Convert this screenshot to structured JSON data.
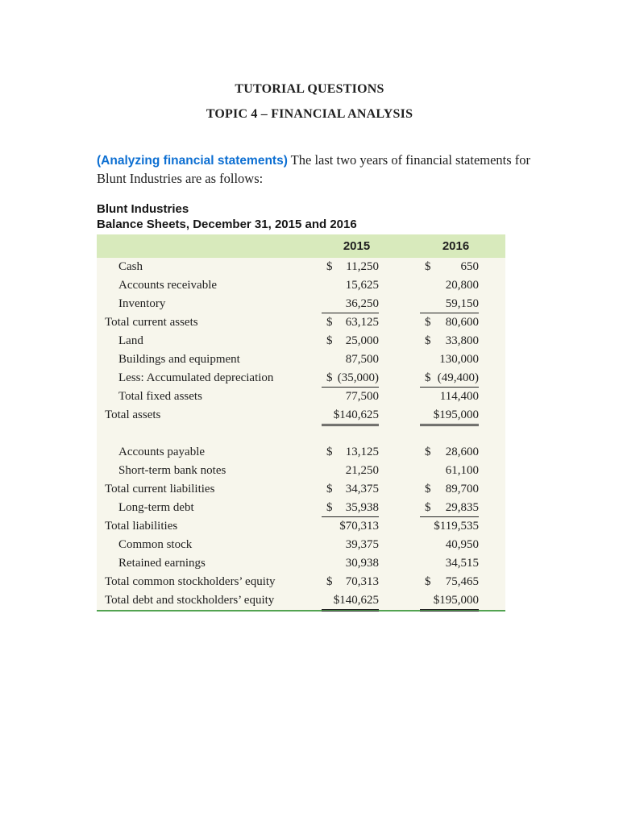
{
  "colors": {
    "highlight_blue": "#0d6fd2",
    "table_header_bg": "#d8eabc",
    "table_body_bg": "#f7f6ec",
    "table_bottom_rule": "#52a351",
    "text": "#1f1f1f"
  },
  "document": {
    "heading_line1": "TUTORIAL QUESTIONS",
    "heading_line2": "TOPIC 4 – FINANCIAL ANALYSIS",
    "intro": {
      "highlight": "(Analyzing financial statements)",
      "text": " The last two years of financial statements for Blunt Industries are as follows:"
    }
  },
  "balance_sheet": {
    "company": "Blunt Industries",
    "subtitle": "Balance Sheets, December 31, 2015 and 2016",
    "columns": [
      "2015",
      "2016"
    ],
    "rows": [
      {
        "label": "Cash",
        "indent": true,
        "underline": "none",
        "amounts": [
          {
            "dollar": "$",
            "value": "11,250"
          },
          {
            "dollar": "$",
            "value": "650"
          }
        ]
      },
      {
        "label": "Accounts receivable",
        "indent": true,
        "underline": "none",
        "amounts": [
          {
            "dollar": "",
            "value": "15,625"
          },
          {
            "dollar": "",
            "value": "20,800"
          }
        ]
      },
      {
        "label": "Inventory",
        "indent": true,
        "underline": "single",
        "amounts": [
          {
            "dollar": "",
            "value": "36,250"
          },
          {
            "dollar": "",
            "value": "59,150"
          }
        ]
      },
      {
        "label": "Total current assets",
        "indent": false,
        "underline": "none",
        "amounts": [
          {
            "dollar": "$",
            "value": "63,125"
          },
          {
            "dollar": "$",
            "value": "80,600"
          }
        ]
      },
      {
        "label": "Land",
        "indent": true,
        "underline": "none",
        "amounts": [
          {
            "dollar": "$",
            "value": "25,000"
          },
          {
            "dollar": "$",
            "value": "33,800"
          }
        ]
      },
      {
        "label": "Buildings and equipment",
        "indent": true,
        "underline": "none",
        "amounts": [
          {
            "dollar": "",
            "value": "87,500"
          },
          {
            "dollar": "",
            "value": "130,000"
          }
        ]
      },
      {
        "label": "Less: Accumulated depreciation",
        "indent": true,
        "underline": "single",
        "amounts": [
          {
            "dollar": "$",
            "value": "(35,000)"
          },
          {
            "dollar": "$",
            "value": "(49,400)"
          }
        ]
      },
      {
        "label": "Total fixed assets",
        "indent": true,
        "underline": "none",
        "amounts": [
          {
            "dollar": "",
            "value": "77,500"
          },
          {
            "dollar": "",
            "value": "114,400"
          }
        ]
      },
      {
        "label": "Total assets",
        "indent": false,
        "underline": "double",
        "amounts": [
          {
            "dollar": "$",
            "value": "140,625",
            "tight": true
          },
          {
            "dollar": "$",
            "value": "195,000",
            "tight": true
          }
        ]
      },
      {
        "spacer": true
      },
      {
        "label": "Accounts payable",
        "indent": true,
        "underline": "none",
        "amounts": [
          {
            "dollar": "$",
            "value": "13,125"
          },
          {
            "dollar": "$",
            "value": "28,600"
          }
        ]
      },
      {
        "label": "Short-term bank notes",
        "indent": true,
        "underline": "none",
        "amounts": [
          {
            "dollar": "",
            "value": "21,250"
          },
          {
            "dollar": "",
            "value": "61,100"
          }
        ]
      },
      {
        "label": "Total current liabilities",
        "indent": false,
        "underline": "none",
        "amounts": [
          {
            "dollar": "$",
            "value": "34,375"
          },
          {
            "dollar": "$",
            "value": "89,700"
          }
        ]
      },
      {
        "label": "Long-term debt",
        "indent": true,
        "underline": "single",
        "amounts": [
          {
            "dollar": "$",
            "value": "35,938"
          },
          {
            "dollar": "$",
            "value": "29,835"
          }
        ]
      },
      {
        "label": "Total liabilities",
        "indent": false,
        "underline": "none",
        "amounts": [
          {
            "dollar": "$",
            "value": "70,313",
            "tight": true
          },
          {
            "dollar": "$",
            "value": "119,535",
            "tight": true
          }
        ]
      },
      {
        "label": "Common stock",
        "indent": true,
        "underline": "none",
        "amounts": [
          {
            "dollar": "",
            "value": "39,375"
          },
          {
            "dollar": "",
            "value": "40,950"
          }
        ]
      },
      {
        "label": "Retained earnings",
        "indent": true,
        "underline": "none",
        "amounts": [
          {
            "dollar": "",
            "value": "30,938"
          },
          {
            "dollar": "",
            "value": "34,515"
          }
        ]
      },
      {
        "label": "Total common stockholders’ equity",
        "indent": false,
        "underline": "none",
        "amounts": [
          {
            "dollar": "$",
            "value": "70,313"
          },
          {
            "dollar": "$",
            "value": "75,465"
          }
        ]
      },
      {
        "label": "Total debt and stockholders’ equity",
        "indent": false,
        "underline": "double",
        "amounts": [
          {
            "dollar": "$",
            "value": "140,625",
            "tight": true
          },
          {
            "dollar": "$",
            "value": "195,000",
            "tight": true
          }
        ]
      }
    ]
  }
}
